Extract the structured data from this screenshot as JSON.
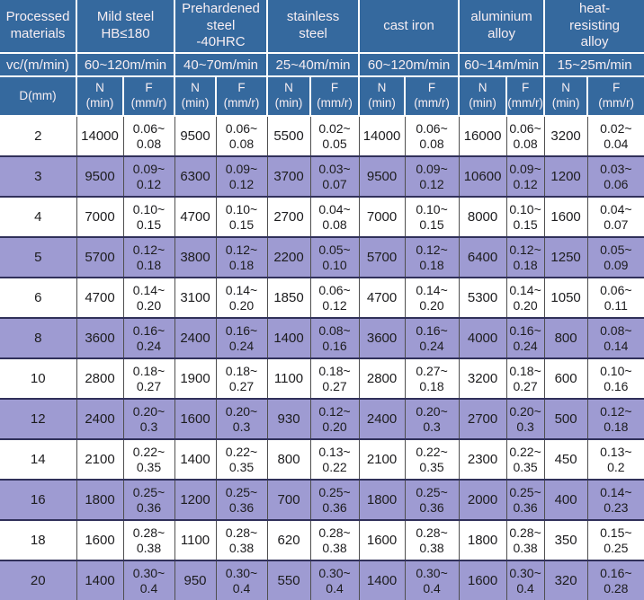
{
  "chart_data": {
    "type": "table",
    "corner_label": "Processed\nmaterials",
    "speed_row_label": "vc/(m/min)",
    "diameter_label": "D(mm)",
    "colors": {
      "header_background": "#35699E",
      "alternate_row": "#9E9BD2",
      "header_text": "#F7EEF2",
      "data_text": "#1C1C1E"
    },
    "column_groups": [
      {
        "material": "Mild steel\nHB≤180",
        "speed": "60~120m/min"
      },
      {
        "material": "Prehardened\nsteel\n-40HRC",
        "speed": "40~70m/min"
      },
      {
        "material": "stainless\nsteel",
        "speed": "25~40m/min"
      },
      {
        "material": "cast iron",
        "speed": "60~120m/min"
      },
      {
        "material": "aluminium\nalloy",
        "speed": "60~14m/min"
      },
      {
        "material": "heat-\nresisting\nalloy",
        "speed": "15~25m/min"
      }
    ],
    "sub_headers": {
      "n": "N\n(min)",
      "f": "F\n(mm/r)"
    },
    "rows": [
      {
        "d": "2",
        "values": [
          "14000",
          "0.06~\n0.08",
          "9500",
          "0.06~\n0.08",
          "5500",
          "0.02~\n0.05",
          "14000",
          "0.06~\n0.08",
          "16000",
          "0.06~\n0.08",
          "3200",
          "0.02~\n0.04"
        ]
      },
      {
        "d": "3",
        "values": [
          "9500",
          "0.09~\n0.12",
          "6300",
          "0.09~\n0.12",
          "3700",
          "0.03~\n0.07",
          "9500",
          "0.09~\n0.12",
          "10600",
          "0.09~\n0.12",
          "1200",
          "0.03~\n0.06"
        ]
      },
      {
        "d": "4",
        "values": [
          "7000",
          "0.10~\n0.15",
          "4700",
          "0.10~\n0.15",
          "2700",
          "0.04~\n0.08",
          "7000",
          "0.10~\n0.15",
          "8000",
          "0.10~\n0.15",
          "1600",
          "0.04~\n0.07"
        ]
      },
      {
        "d": "5",
        "values": [
          "5700",
          "0.12~\n0.18",
          "3800",
          "0.12~\n0.18",
          "2200",
          "0.05~\n0.10",
          "5700",
          "0.12~\n0.18",
          "6400",
          "0.12~\n0.18",
          "1250",
          "0.05~\n0.09"
        ]
      },
      {
        "d": "6",
        "values": [
          "4700",
          "0.14~\n0.20",
          "3100",
          "0.14~\n0.20",
          "1850",
          "0.06~\n0.12",
          "4700",
          "0.14~\n0.20",
          "5300",
          "0.14~\n0.20",
          "1050",
          "0.06~\n0.11"
        ]
      },
      {
        "d": "8",
        "values": [
          "3600",
          "0.16~\n0.24",
          "2400",
          "0.16~\n0.24",
          "1400",
          "0.08~\n0.16",
          "3600",
          "0.16~\n0.24",
          "4000",
          "0.16~\n0.24",
          "800",
          "0.08~\n0.14"
        ]
      },
      {
        "d": "10",
        "values": [
          "2800",
          "0.18~\n0.27",
          "1900",
          "0.18~\n0.27",
          "1100",
          "0.18~\n0.27",
          "2800",
          "0.27~\n0.18",
          "3200",
          "0.18~\n0.27",
          "600",
          "0.10~\n0.16"
        ]
      },
      {
        "d": "12",
        "values": [
          "2400",
          "0.20~\n0.3",
          "1600",
          "0.20~\n0.3",
          "930",
          "0.12~\n0.20",
          "2400",
          "0.20~\n0.3",
          "2700",
          "0.20~\n0.3",
          "500",
          "0.12~\n0.18"
        ]
      },
      {
        "d": "14",
        "values": [
          "2100",
          "0.22~\n0.35",
          "1400",
          "0.22~\n0.35",
          "800",
          "0.13~\n0.22",
          "2100",
          "0.22~\n0.35",
          "2300",
          "0.22~\n0.35",
          "450",
          "0.13~\n0.2"
        ]
      },
      {
        "d": "16",
        "values": [
          "1800",
          "0.25~\n0.36",
          "1200",
          "0.25~\n0.36",
          "700",
          "0.25~\n0.36",
          "1800",
          "0.25~\n0.36",
          "2000",
          "0.25~\n0.36",
          "400",
          "0.14~\n0.23"
        ]
      },
      {
        "d": "18",
        "values": [
          "1600",
          "0.28~\n0.38",
          "1100",
          "0.28~\n0.38",
          "620",
          "0.28~\n0.38",
          "1600",
          "0.28~\n0.38",
          "1800",
          "0.28~\n0.38",
          "350",
          "0.15~\n0.25"
        ]
      },
      {
        "d": "20",
        "values": [
          "1400",
          "0.30~\n0.4",
          "950",
          "0.30~\n0.4",
          "550",
          "0.30~\n0.4",
          "1400",
          "0.30~\n0.4",
          "1600",
          "0.30~\n0.4",
          "320",
          "0.16~\n0.28"
        ]
      }
    ]
  }
}
